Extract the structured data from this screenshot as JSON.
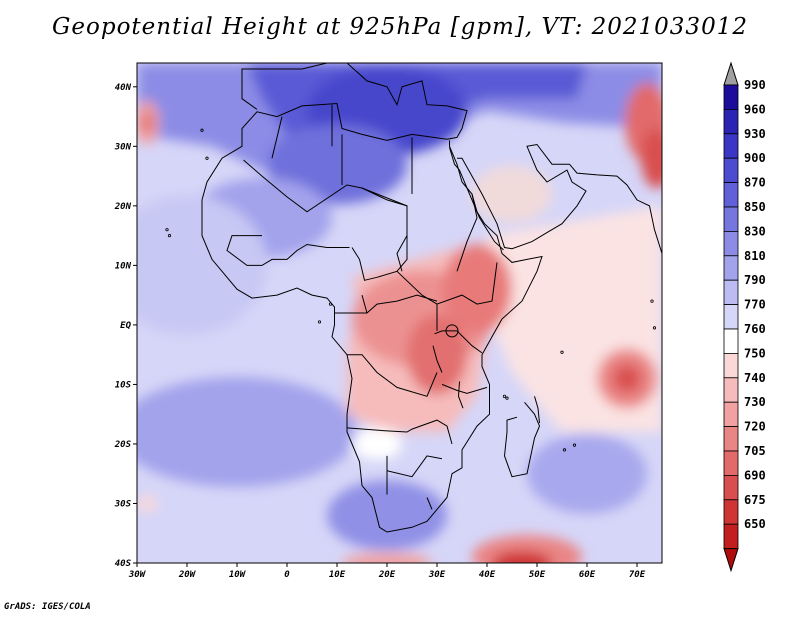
{
  "title": "Geopotential Height at 925hPa [gpm], VT: 2021033012",
  "credit": "GrADS: IGES/COLA",
  "map": {
    "region": "Africa",
    "variable": "Geopotential Height at 925hPa",
    "units": "gpm",
    "valid_time": "2021033012",
    "lon_ticks": [
      "30W",
      "20W",
      "10W",
      "0",
      "10E",
      "20E",
      "30E",
      "40E",
      "50E",
      "60E",
      "70E"
    ],
    "lat_ticks": [
      "40N",
      "30N",
      "20N",
      "10N",
      "EQ",
      "10S",
      "20S",
      "30S",
      "40S"
    ]
  },
  "colorbar": {
    "levels": [
      "990",
      "960",
      "930",
      "900",
      "870",
      "850",
      "830",
      "810",
      "790",
      "770",
      "760",
      "750",
      "740",
      "730",
      "720",
      "705",
      "690",
      "675",
      "650"
    ],
    "colors": [
      "#1c0d9c",
      "#2a23b4",
      "#3b37c6",
      "#4c4cd1",
      "#6060d8",
      "#7676df",
      "#8c8ce6",
      "#a3a3ec",
      "#bcbcf2",
      "#d6d6f8",
      "#ffffff",
      "#fbd8d8",
      "#f6bcbc",
      "#f1a1a1",
      "#ea8585",
      "#e26a6a",
      "#d94f4f",
      "#cf3535",
      "#c21f1f",
      "#b00c0c"
    ],
    "top_arrow_color": "#a0a0a0",
    "bottom_arrow_color": "#b00c0c"
  },
  "highs_lows": [
    {
      "name": "arabian-sea-low",
      "lon": 68,
      "lat": -9,
      "value": 705
    },
    {
      "name": "east-africa-low",
      "lon": 30,
      "lat": 0,
      "value": 740
    },
    {
      "name": "ethiopia-low",
      "lon": 38,
      "lat": 7,
      "value": 730
    },
    {
      "name": "southern-ocean-low",
      "lon": 48,
      "lat": -39,
      "value": 690
    },
    {
      "name": "persian-gulf-low",
      "lon": 71,
      "lat": 32,
      "value": 720
    },
    {
      "name": "atlantic-high-north",
      "lon": -28,
      "lat": 35,
      "value": 730
    }
  ]
}
